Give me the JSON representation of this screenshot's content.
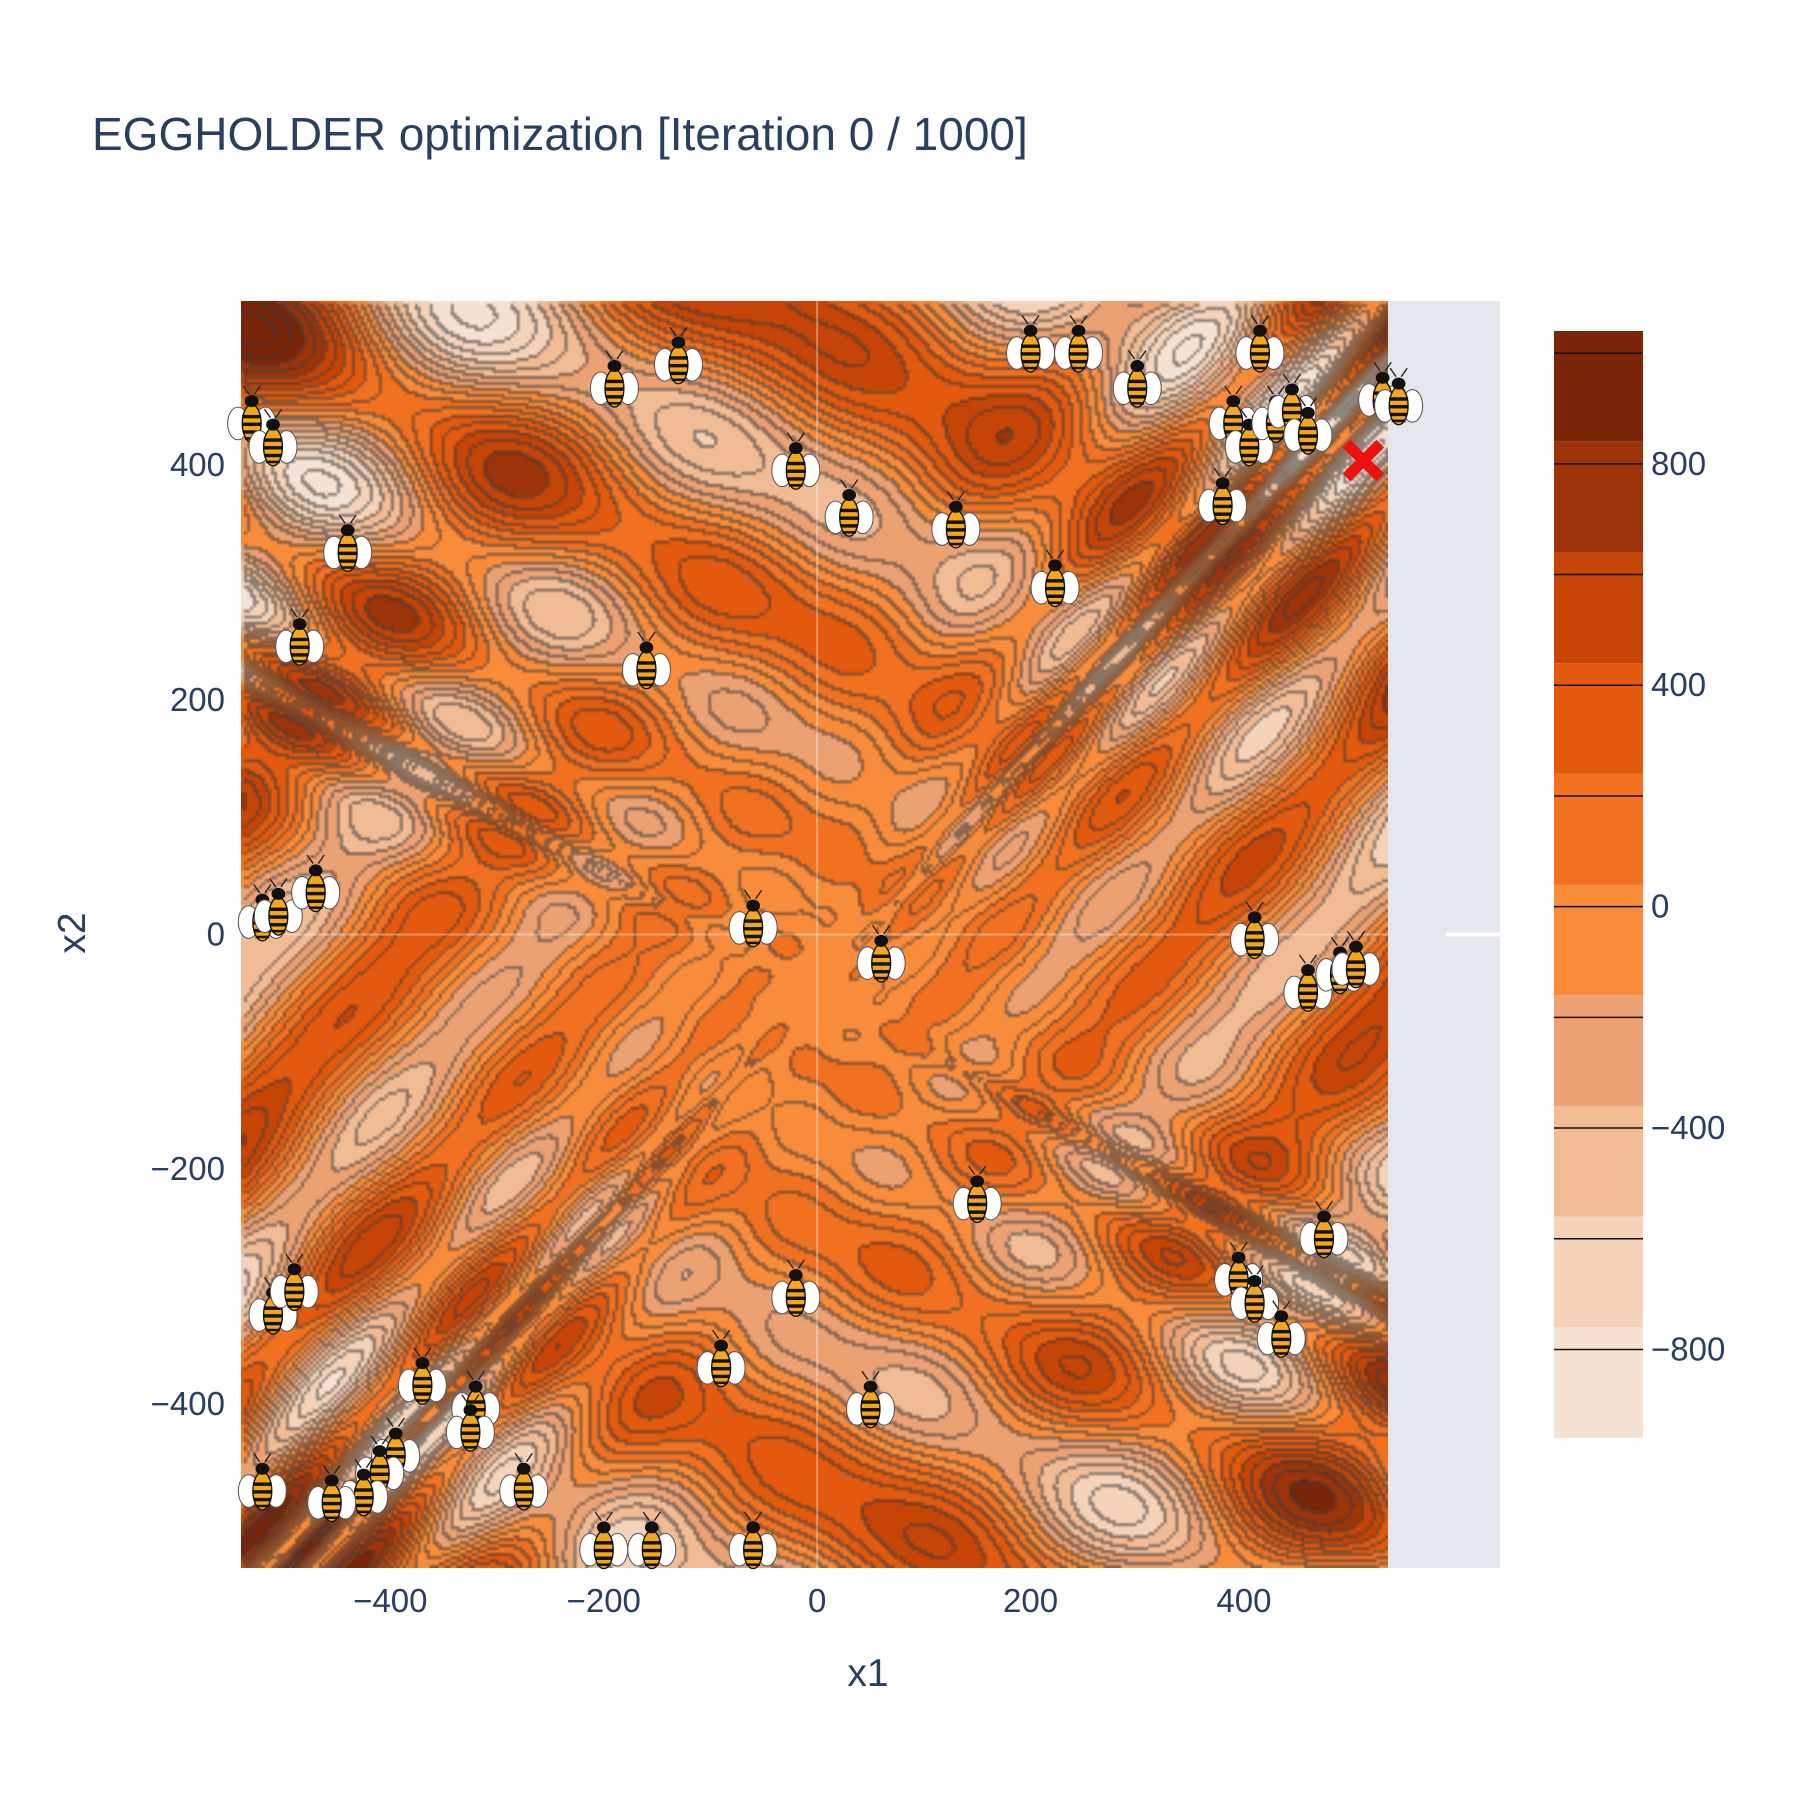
{
  "chart_data": {
    "type": "contour",
    "title": "EGGHOLDER optimization [Iteration 0 / 1000]",
    "xlabel": "x1",
    "ylabel": "x2",
    "xlim": [
      -540,
      640
    ],
    "ylim": [
      -540,
      540
    ],
    "x_ticks": [
      -400,
      -200,
      0,
      200,
      400
    ],
    "y_ticks": [
      -400,
      -200,
      0,
      200,
      400
    ],
    "x_tick_labels": [
      "−400",
      "−200",
      "0",
      "200",
      "400"
    ],
    "y_tick_labels": [
      "−400",
      "−200",
      "0",
      "200",
      "400"
    ],
    "colorbar": {
      "range": [
        -960,
        1040
      ],
      "level_step": 200,
      "tick_values": [
        -800,
        -400,
        0,
        400,
        800
      ],
      "tick_labels": [
        "−800",
        "−400",
        "0",
        "400",
        "800"
      ],
      "colors": [
        "#f6e2d2",
        "#f4d3ba",
        "#f1bb94",
        "#eca172",
        "#f98c3a",
        "#f17121",
        "#e3590d",
        "#c64406",
        "#9c3309",
        "#7a2408"
      ]
    },
    "data_region": {
      "x": [
        -540,
        535
      ],
      "y": [
        -540,
        540
      ]
    },
    "particles": {
      "icon": "bee-icon",
      "points": [
        [
          -190,
          470
        ],
        [
          -130,
          490
        ],
        [
          -20,
          400
        ],
        [
          30,
          360
        ],
        [
          200,
          500
        ],
        [
          245,
          500
        ],
        [
          300,
          470
        ],
        [
          415,
          500
        ],
        [
          390,
          440
        ],
        [
          405,
          420
        ],
        [
          430,
          440
        ],
        [
          445,
          450
        ],
        [
          460,
          430
        ],
        [
          530,
          460
        ],
        [
          545,
          455
        ],
        [
          380,
          370
        ],
        [
          130,
          350
        ],
        [
          223,
          300
        ],
        [
          -530,
          440
        ],
        [
          -510,
          420
        ],
        [
          -440,
          330
        ],
        [
          -485,
          250
        ],
        [
          -160,
          230
        ],
        [
          -520,
          15
        ],
        [
          -505,
          20
        ],
        [
          -470,
          40
        ],
        [
          -60,
          10
        ],
        [
          60,
          -20
        ],
        [
          410,
          0
        ],
        [
          460,
          -45
        ],
        [
          490,
          -30
        ],
        [
          505,
          -25
        ],
        [
          -510,
          -320
        ],
        [
          -490,
          -300
        ],
        [
          -370,
          -380
        ],
        [
          -320,
          -400
        ],
        [
          -325,
          -420
        ],
        [
          -395,
          -440
        ],
        [
          -410,
          -455
        ],
        [
          -425,
          -475
        ],
        [
          -455,
          -480
        ],
        [
          -520,
          -470
        ],
        [
          -275,
          -470
        ],
        [
          -200,
          -520
        ],
        [
          -155,
          -520
        ],
        [
          -60,
          -520
        ],
        [
          -90,
          -365
        ],
        [
          -20,
          -305
        ],
        [
          50,
          -400
        ],
        [
          150,
          -225
        ],
        [
          475,
          -255
        ],
        [
          395,
          -290
        ],
        [
          410,
          -310
        ],
        [
          435,
          -340
        ]
      ]
    },
    "best_marker": {
      "icon": "close-icon",
      "color": "#ee1111",
      "x": 512,
      "y": 404
    }
  }
}
